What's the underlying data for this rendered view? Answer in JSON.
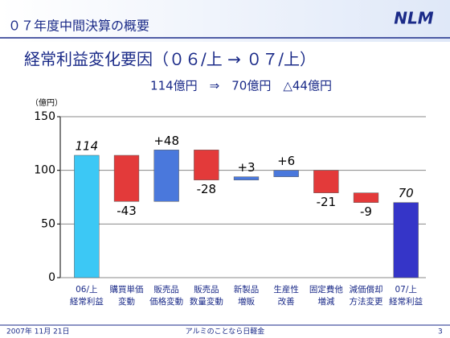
{
  "header": {
    "title": "０７年度中間決算の概要",
    "logo": "NLM"
  },
  "chart_data": {
    "type": "waterfall",
    "title": "経常利益変化要因（０６/上 → ０７/上）",
    "subtitle": "114億円　⇒　70億円　△44億円",
    "y_unit": "（億円）",
    "categories": [
      [
        "06/上",
        "経常利益"
      ],
      [
        "購買単価",
        "変動"
      ],
      [
        "販売品",
        "価格変動"
      ],
      [
        "販売品",
        "数量変動"
      ],
      [
        "新製品",
        "増販"
      ],
      [
        "生産性",
        "改善"
      ],
      [
        "固定費他",
        "増減"
      ],
      [
        "減価償却",
        "方法変更"
      ],
      [
        "07/上",
        "経常利益"
      ]
    ],
    "values": [
      114,
      -43,
      48,
      -28,
      3,
      6,
      -21,
      -9,
      70
    ],
    "value_labels": [
      "114",
      "-43",
      "+48",
      "-28",
      "+3",
      "+6",
      "-21",
      "-9",
      "70"
    ],
    "colors": [
      "#3cc8f5",
      "#e33a3a",
      "#4a78dc",
      "#e33a3a",
      "#4a78dc",
      "#4a78dc",
      "#e33a3a",
      "#e33a3a",
      "#3535c8"
    ],
    "ylim": [
      0,
      150
    ],
    "yticks": [
      0,
      50,
      100,
      150
    ],
    "grid": true
  },
  "footer": {
    "date": "2007年 11月 21日",
    "slogan": "アルミのことなら日軽金",
    "page": "3"
  }
}
